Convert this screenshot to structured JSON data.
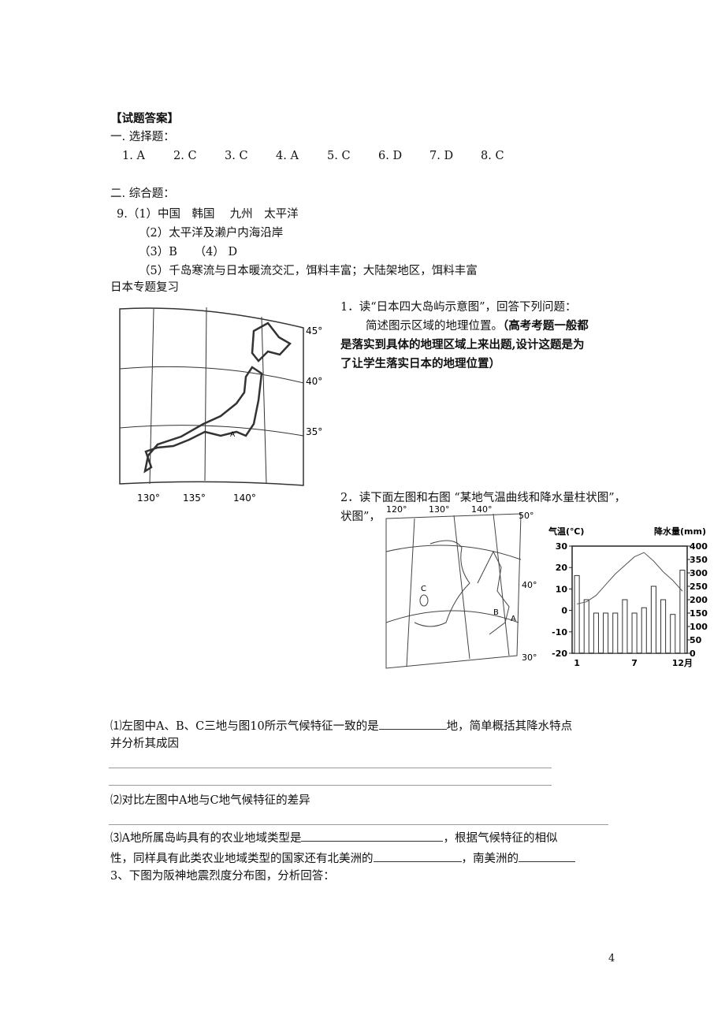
{
  "header": "【试题答案】",
  "part1": {
    "title": "一. 选择题：",
    "answers": [
      "1. A",
      "2. C",
      "3. C",
      "4. A",
      "5. C",
      "6. D",
      "7. D",
      "8. C"
    ]
  },
  "part2": {
    "title": "二. 综合题：",
    "lines": [
      "9.（1）中国　韩国　 九州　太平洋",
      "（2）太平洋及濑户内海沿岸",
      "（3）B　　（4） D",
      "（5）千岛寒流与日本暖流交汇，饵料丰富；大陆架地区，饵料丰富"
    ]
  },
  "section": "日本专题复习",
  "q1": {
    "title": "1．读“日本四大岛屿示意图”，回答下列问题：",
    "prompt": "简述图示区域的地理位置。",
    "note_lines": [
      "（高考考题一般都",
      "是落实到具体的地理区域上来出题,设计这题是为",
      "了让学生落实日本的地理位置）"
    ],
    "map_labels": {
      "lat": [
        "45°",
        "40°",
        "35°"
      ],
      "lon": [
        "130°",
        "135°",
        "140°"
      ],
      "point": "A"
    }
  },
  "q2": {
    "title_lines": [
      "2．读下面左图和右图 “某地气温曲线和降水量柱状图”，",
      "状图”，"
    ],
    "map_labels": {
      "lon": [
        "120°",
        "130°",
        "140°"
      ],
      "lat": [
        "50°",
        "40°",
        "30°"
      ],
      "points": [
        "C",
        "B",
        "A"
      ]
    },
    "chart_data": {
      "type": "bar",
      "y_label": "气温(℃)",
      "y2_label": "降水量(mm)",
      "categories": [
        "1",
        null,
        null,
        null,
        null,
        null,
        "7",
        null,
        null,
        null,
        null,
        "12月"
      ],
      "ylim": [
        -20,
        30
      ],
      "yticks": [
        -20,
        -10,
        0,
        10,
        20,
        30
      ],
      "y2lim": [
        0,
        400
      ],
      "y2ticks": [
        0,
        50,
        100,
        150,
        200,
        250,
        300,
        350,
        400
      ],
      "series": [
        {
          "name": "降水量",
          "type": "bar",
          "axis": "y2",
          "color": "#ffffff",
          "values": [
            290,
            200,
            150,
            150,
            150,
            200,
            150,
            170,
            250,
            200,
            145,
            310
          ]
        },
        {
          "name": "气温",
          "type": "line",
          "axis": "y",
          "color": "#555555",
          "values": [
            3,
            4,
            7,
            12,
            17,
            21,
            25,
            27,
            23,
            18,
            14,
            9
          ]
        }
      ]
    }
  },
  "questions": {
    "q1": [
      "⑴左图中A、B、C三地与图10所示气候特征一致的是",
      "地，简单概括其降水特点",
      "并分析其成因"
    ],
    "q2": "⑵对比左图中A地与C地气候特征的差异",
    "q3": [
      "⑶A地所属岛屿具有的农业地域类型是",
      "，根据气候特征的相似",
      "性，同样具有此类农业地域类型的国家还有北美洲的",
      "，南美洲的"
    ],
    "q4": "3、下图为阪神地震烈度分布图，分析回答："
  },
  "page_number": "4"
}
